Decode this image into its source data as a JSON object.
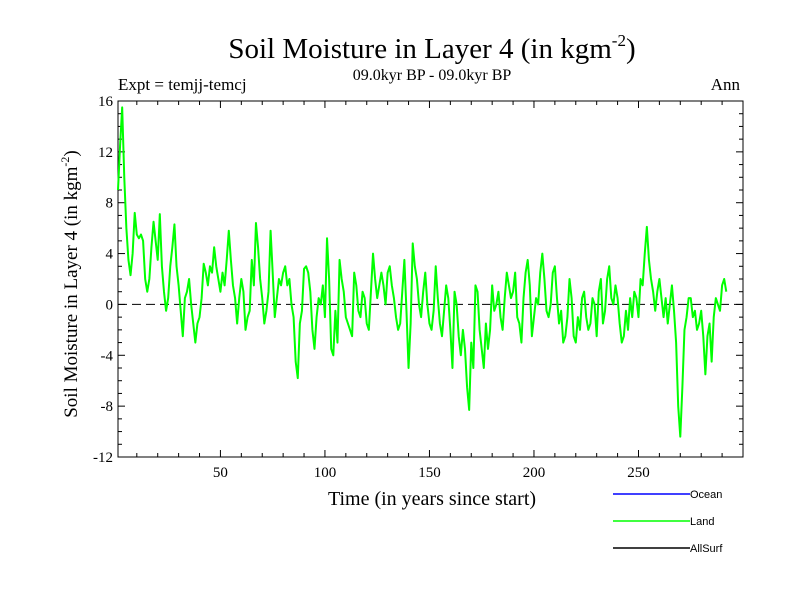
{
  "chart_data": {
    "type": "line",
    "title": "Soil Moisture in Layer 4 (in kgm",
    "title_sup": "-2",
    "title_close": ")",
    "subtitle": "09.0kyr BP - 09.0kyr BP",
    "expt_label": "Expt = temjj-temcj",
    "period_label": "Ann",
    "xlabel": "Time (in years since start)",
    "ylabel": "Soil Moisture in Layer 4 (in kgm",
    "ylabel_sup": "-2",
    "ylabel_close": ")",
    "xlim": [
      1,
      300
    ],
    "ylim": [
      -12,
      16
    ],
    "x_ticks": [
      50,
      100,
      150,
      200,
      250
    ],
    "y_ticks": [
      -12,
      -8,
      -4,
      0,
      4,
      8,
      12,
      16
    ],
    "x_tick_labels": [
      "50",
      "100",
      "150",
      "200",
      "250"
    ],
    "y_tick_labels": [
      "-12",
      "-8",
      "-4",
      "0",
      "4",
      "8",
      "12",
      "16"
    ],
    "zero_line": 0,
    "legend": [
      {
        "name": "Ocean",
        "color": "#0000ff"
      },
      {
        "name": "Land",
        "color": "#00ff00"
      },
      {
        "name": "AllSurf",
        "color": "#000000"
      }
    ],
    "series": [
      {
        "name": "Land",
        "color": "#00ff00",
        "x_start": 1,
        "x_step": 1,
        "values": [
          9.0,
          12.5,
          15.5,
          10.0,
          6.0,
          3.5,
          2.3,
          4.0,
          7.2,
          5.5,
          5.2,
          5.5,
          5.0,
          2.0,
          1.0,
          2.0,
          4.5,
          6.5,
          5.0,
          3.5,
          7.1,
          3.0,
          1.0,
          -0.5,
          0.5,
          3.0,
          4.5,
          6.3,
          3.0,
          1.5,
          -0.5,
          -2.5,
          0.5,
          1.0,
          2.0,
          0.0,
          -1.5,
          -3.0,
          -1.5,
          -1.0,
          0.5,
          3.2,
          2.5,
          1.5,
          3.0,
          2.5,
          4.5,
          3.0,
          2.0,
          1.0,
          2.5,
          1.5,
          3.5,
          5.8,
          3.5,
          1.5,
          0.5,
          -1.5,
          0.5,
          2.0,
          1.0,
          -2.0,
          -1.0,
          -0.5,
          3.5,
          1.5,
          6.4,
          4.5,
          2.0,
          0.5,
          -1.5,
          -0.5,
          1.0,
          5.8,
          2.5,
          -1.0,
          0.5,
          2.0,
          1.5,
          2.5,
          3.0,
          1.5,
          2.0,
          0.0,
          -1.0,
          -4.5,
          -5.8,
          -1.5,
          -0.5,
          2.8,
          3.0,
          2.5,
          1.0,
          -2.0,
          -3.5,
          -1.0,
          0.5,
          0.0,
          1.5,
          -1.0,
          5.2,
          2.0,
          -3.5,
          -4.0,
          -0.5,
          -3.0,
          3.5,
          2.0,
          1.0,
          -1.0,
          -1.5,
          -2.0,
          -2.5,
          2.5,
          1.5,
          -0.5,
          -1.0,
          1.0,
          0.5,
          -1.5,
          -2.0,
          1.0,
          4.0,
          2.0,
          0.5,
          1.5,
          2.5,
          1.5,
          0.0,
          2.5,
          3.0,
          1.5,
          0.5,
          -1.0,
          -2.0,
          -1.5,
          1.0,
          3.5,
          -0.5,
          -5.0,
          -1.5,
          4.8,
          3.0,
          2.0,
          0.0,
          -1.0,
          1.0,
          2.5,
          0.0,
          -1.5,
          -2.0,
          -0.5,
          3.0,
          0.5,
          -1.5,
          -2.5,
          -0.5,
          1.5,
          0.5,
          -2.0,
          -5.0,
          1.0,
          0.0,
          -2.5,
          -4.0,
          -2.0,
          -3.5,
          -6.5,
          -8.3,
          -3.0,
          -5.0,
          1.5,
          1.0,
          -2.0,
          -3.5,
          -5.0,
          -1.5,
          -3.5,
          -2.0,
          1.5,
          -0.5,
          0.0,
          1.0,
          -1.0,
          -2.0,
          0.5,
          2.5,
          1.5,
          0.5,
          1.0,
          2.5,
          -1.0,
          -1.5,
          -3.0,
          0.5,
          2.5,
          3.5,
          1.5,
          -2.5,
          -1.0,
          0.5,
          0.0,
          2.5,
          4.0,
          2.0,
          -0.5,
          -1.0,
          0.0,
          2.5,
          3.0,
          0.5,
          -1.5,
          -0.5,
          -3.0,
          -2.5,
          -1.0,
          2.0,
          0.5,
          -2.5,
          -3.0,
          -1.0,
          -2.0,
          0.5,
          1.0,
          -1.0,
          -2.0,
          -1.5,
          0.5,
          0.0,
          -2.5,
          1.0,
          2.0,
          -1.5,
          -0.5,
          2.0,
          3.0,
          0.5,
          0.0,
          1.5,
          0.5,
          -1.5,
          -3.0,
          -2.5,
          -0.5,
          -2.0,
          0.5,
          -1.0,
          1.0,
          0.5,
          -1.0,
          2.0,
          1.5,
          4.0,
          6.1,
          3.5,
          2.0,
          1.0,
          -0.5,
          1.0,
          2.0,
          0.5,
          -1.0,
          0.5,
          -1.5,
          0.0,
          1.5,
          -0.5,
          -3.0,
          -8.0,
          -10.4,
          -6.5,
          -2.0,
          -1.0,
          0.5,
          0.5,
          -1.0,
          -0.5,
          -2.0,
          -1.5,
          -0.5,
          -2.5,
          -5.5,
          -2.5,
          -1.5,
          -4.5,
          -1.0,
          0.5,
          0.0,
          -0.5,
          1.5,
          2.0,
          1.0
        ]
      }
    ]
  }
}
